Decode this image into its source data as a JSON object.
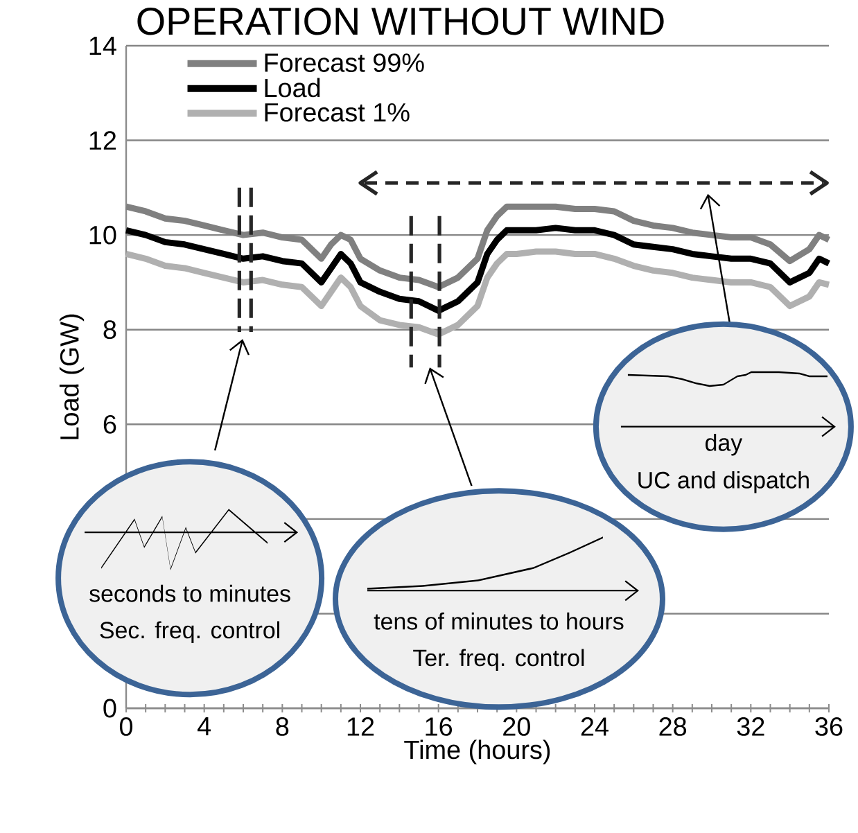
{
  "chart_data": {
    "type": "line",
    "title": "OPERATION WITHOUT WIND",
    "xlabel": "Time (hours)",
    "ylabel": "Load (GW)",
    "x": [
      0,
      1,
      2,
      3,
      4,
      5,
      6,
      7,
      8,
      9,
      10,
      10.5,
      11,
      11.5,
      12,
      13,
      14,
      15,
      16,
      17,
      18,
      18.5,
      19,
      19.5,
      20,
      21,
      22,
      23,
      24,
      25,
      26,
      27,
      28,
      29,
      30,
      31,
      32,
      33,
      34,
      35,
      35.5,
      36
    ],
    "series": [
      {
        "name": "Forecast 99%",
        "color": "#808080",
        "values": [
          10.6,
          10.5,
          10.35,
          10.3,
          10.2,
          10.1,
          10.0,
          10.05,
          9.95,
          9.9,
          9.5,
          9.8,
          10.0,
          9.9,
          9.5,
          9.25,
          9.1,
          9.05,
          8.9,
          9.1,
          9.5,
          10.1,
          10.4,
          10.6,
          10.6,
          10.6,
          10.6,
          10.55,
          10.55,
          10.5,
          10.3,
          10.2,
          10.15,
          10.05,
          10.0,
          9.95,
          9.95,
          9.8,
          9.45,
          9.7,
          10.0,
          9.9
        ]
      },
      {
        "name": "Load",
        "color": "#000000",
        "values": [
          10.1,
          10.0,
          9.85,
          9.8,
          9.7,
          9.6,
          9.5,
          9.55,
          9.45,
          9.4,
          9.0,
          9.3,
          9.6,
          9.4,
          9.0,
          8.8,
          8.65,
          8.6,
          8.4,
          8.6,
          9.0,
          9.6,
          9.9,
          10.1,
          10.1,
          10.1,
          10.15,
          10.1,
          10.1,
          10.0,
          9.8,
          9.75,
          9.7,
          9.6,
          9.55,
          9.5,
          9.5,
          9.4,
          9.0,
          9.2,
          9.5,
          9.4
        ]
      },
      {
        "name": "Forecast 1%",
        "color": "#b0b0b0",
        "values": [
          9.6,
          9.5,
          9.35,
          9.3,
          9.2,
          9.1,
          9.0,
          9.05,
          8.95,
          8.9,
          8.5,
          8.8,
          9.1,
          8.9,
          8.5,
          8.2,
          8.1,
          8.05,
          7.9,
          8.1,
          8.5,
          9.1,
          9.4,
          9.6,
          9.6,
          9.65,
          9.65,
          9.6,
          9.6,
          9.5,
          9.35,
          9.25,
          9.2,
          9.1,
          9.05,
          9.0,
          9.0,
          8.9,
          8.5,
          8.7,
          9.0,
          8.95
        ]
      }
    ],
    "xlim": [
      0,
      36
    ],
    "ylim": [
      0,
      14
    ],
    "xticks": [
      0,
      4,
      8,
      12,
      16,
      20,
      24,
      28,
      32,
      36
    ],
    "yticks": [
      0,
      {
        "value": 2,
        "label": null
      },
      {
        "value": 4,
        "label": null
      },
      6,
      8,
      10,
      12,
      14
    ],
    "grid": "y",
    "legend": "top left",
    "annotations": [
      "seconds to minutes",
      "Sec. freq. control",
      "tens of minutes to hours",
      "Ter. freq. control",
      "day",
      "UC and dispatch"
    ]
  }
}
